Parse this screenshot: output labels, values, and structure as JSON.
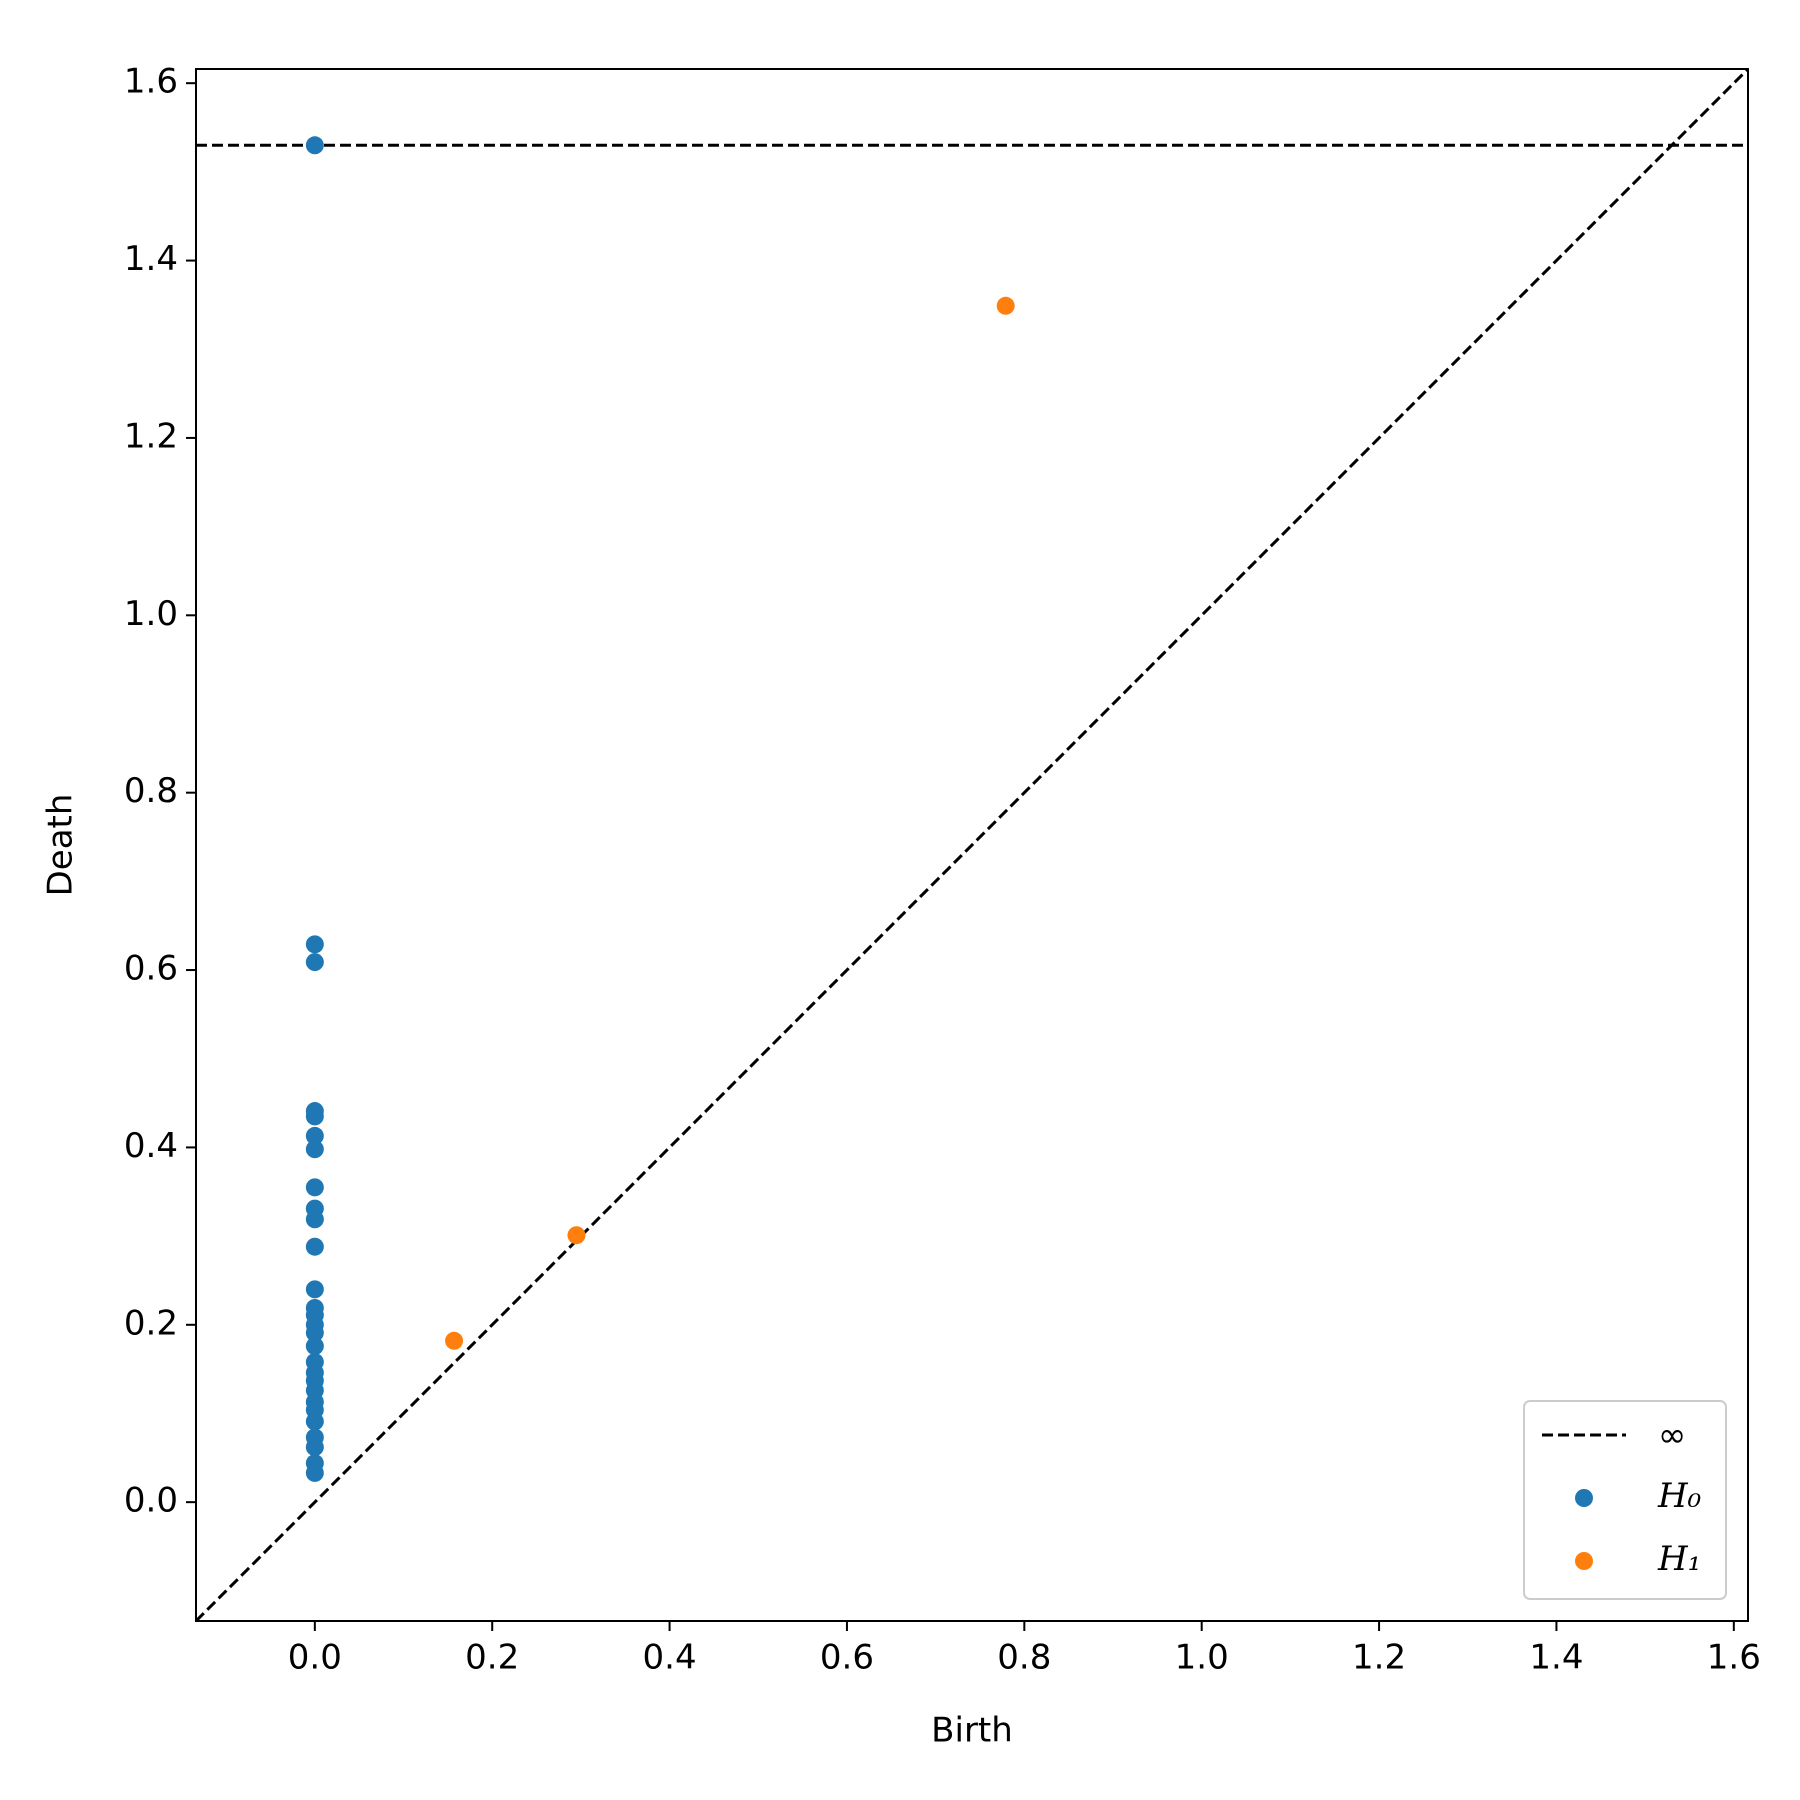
{
  "chart_data": {
    "type": "scatter",
    "xlabel": "Birth",
    "ylabel": "Death",
    "xlim": [
      -0.134,
      1.616
    ],
    "ylim": [
      -0.134,
      1.616
    ],
    "xticks": [
      {
        "value": 0,
        "label": "0.0"
      },
      0.2,
      0.4,
      0.6,
      0.8,
      {
        "value": 1,
        "label": "1.0"
      },
      1.2,
      1.4,
      1.6
    ],
    "yticks": [
      {
        "value": 0,
        "label": "0.0"
      },
      0.2,
      0.4,
      0.6,
      0.8,
      {
        "value": 1,
        "label": "1.0"
      },
      1.2,
      1.4,
      1.6
    ],
    "infinity_line": {
      "name": "∞",
      "value": 1.53,
      "color": "#000000"
    },
    "series": [
      {
        "name": "H₀",
        "color": "#1f77b4",
        "x": [
          0,
          0,
          0,
          0,
          0,
          0,
          0,
          0,
          0,
          0,
          0,
          0,
          0,
          0,
          0,
          0,
          0,
          0,
          0,
          0,
          0,
          0,
          0,
          0,
          0,
          0,
          0,
          0
        ],
        "values": [
          1.53,
          0.629,
          0.609,
          0.441,
          0.435,
          0.413,
          0.398,
          0.355,
          0.331,
          0.319,
          0.288,
          0.24,
          0.219,
          0.211,
          0.2,
          0.191,
          0.176,
          0.158,
          0.146,
          0.137,
          0.126,
          0.113,
          0.104,
          0.091,
          0.073,
          0.062,
          0.044,
          0.033
        ]
      },
      {
        "name": "H₁",
        "color": "#ff7f0e",
        "x": [
          0.779,
          0.157,
          0.295
        ],
        "values": [
          1.349,
          0.182,
          0.301
        ]
      }
    ],
    "legend": "lower right"
  }
}
